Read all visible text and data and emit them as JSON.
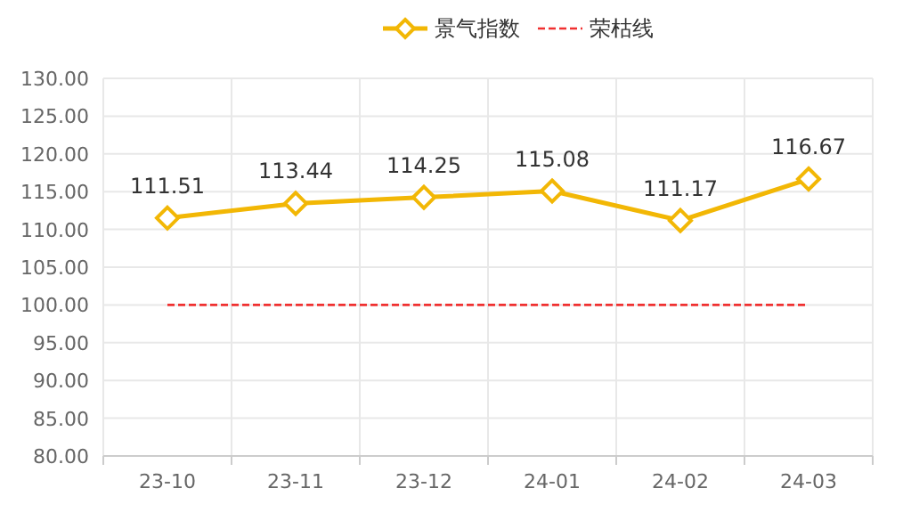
{
  "chart_data": {
    "type": "line",
    "categories": [
      "23-10",
      "23-11",
      "23-12",
      "24-01",
      "24-02",
      "24-03"
    ],
    "series": [
      {
        "name": "景气指数",
        "color": "#f2b705",
        "values": [
          111.51,
          113.44,
          114.25,
          115.08,
          111.17,
          116.67
        ],
        "marker": "diamond",
        "line_style": "solid",
        "value_labels": [
          "111.51",
          "113.44",
          "114.25",
          "115.08",
          "111.17",
          "116.67"
        ]
      },
      {
        "name": "荣枯线",
        "color": "#f03030",
        "values": [
          100,
          100,
          100,
          100,
          100,
          100
        ],
        "marker": "none",
        "line_style": "dashed"
      }
    ],
    "ylim": [
      80,
      130
    ],
    "yticks": [
      {
        "value": 80,
        "label": "80.00"
      },
      {
        "value": 85,
        "label": "85.00"
      },
      {
        "value": 90,
        "label": "90.00"
      },
      {
        "value": 95,
        "label": "95.00"
      },
      {
        "value": 100,
        "label": "100.00"
      },
      {
        "value": 105,
        "label": "105.00"
      },
      {
        "value": 110,
        "label": "110.00"
      },
      {
        "value": 115,
        "label": "115.00"
      },
      {
        "value": 120,
        "label": "120.00"
      },
      {
        "value": 125,
        "label": "125.00"
      },
      {
        "value": 130,
        "label": "130.00"
      }
    ],
    "grid": true,
    "legend": "top"
  }
}
